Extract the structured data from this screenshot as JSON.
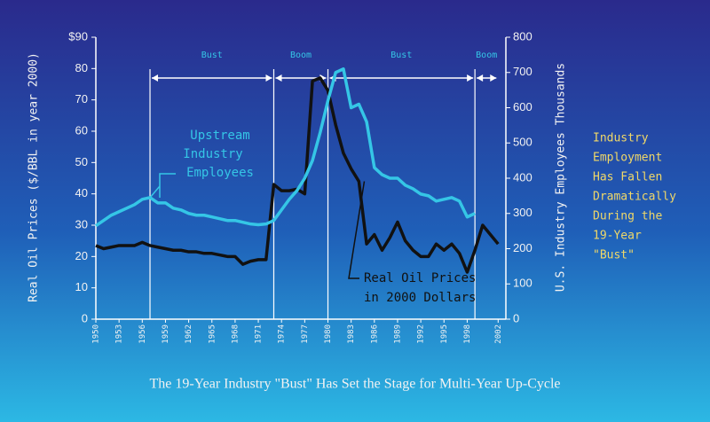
{
  "chart_data": {
    "type": "line",
    "title": "The 19-Year Industry \"Bust\" Has Set the Stage for Multi-Year Up-Cycle",
    "y_label": "Real Oil Prices ($/BBL in year 2000)",
    "y2_label": "U.S. Industry Employees Thousands",
    "xlim": [
      1950,
      2003
    ],
    "xticks": [
      1950,
      1953,
      1956,
      1959,
      1962,
      1965,
      1968,
      1971,
      1974,
      1977,
      1980,
      1983,
      1986,
      1989,
      1992,
      1995,
      1998,
      2002
    ],
    "ylim": [
      0,
      90
    ],
    "yticks": [
      0,
      10,
      20,
      30,
      40,
      50,
      60,
      70,
      80,
      {
        "value": 90,
        "label": "$90"
      }
    ],
    "y2lim": [
      0,
      800
    ],
    "y2ticks": [
      0,
      100,
      200,
      300,
      400,
      500,
      600,
      700,
      800
    ],
    "periods": [
      {
        "label": "Bust",
        "start": 1957,
        "end": 1973
      },
      {
        "label": "Boom",
        "start": 1973,
        "end": 1980
      },
      {
        "label": "Bust",
        "start": 1980,
        "end": 1999
      },
      {
        "label": "Boom",
        "start": 1999,
        "end": 2002
      }
    ],
    "series": [
      {
        "name": "Real Oil Prices in 2000 Dollars",
        "name_lines": [
          "Real Oil Prices",
          "in 2000 Dollars"
        ],
        "color": "#111111",
        "axis": "y",
        "x": [
          1950,
          1951,
          1952,
          1953,
          1954,
          1955,
          1956,
          1957,
          1958,
          1959,
          1960,
          1961,
          1962,
          1963,
          1964,
          1965,
          1966,
          1967,
          1968,
          1969,
          1970,
          1971,
          1972,
          1973,
          1974,
          1975,
          1976,
          1977,
          1978,
          1979,
          1980,
          1981,
          1982,
          1983,
          1984,
          1985,
          1986,
          1987,
          1988,
          1989,
          1990,
          1991,
          1992,
          1993,
          1994,
          1995,
          1996,
          1997,
          1998,
          1999,
          2000,
          2001,
          2002
        ],
        "values": [
          23.5,
          22.5,
          23,
          23.5,
          23.5,
          23.5,
          24.5,
          23.5,
          23,
          22.5,
          22,
          22,
          21.5,
          21.5,
          21,
          21,
          20.5,
          20,
          20,
          17.5,
          18.5,
          19,
          19,
          43,
          41,
          41,
          41.5,
          40,
          76,
          77,
          73,
          62,
          53,
          48,
          44,
          24,
          27,
          22,
          26,
          31,
          25,
          22,
          20,
          20,
          24,
          22,
          24,
          21,
          15,
          22,
          30,
          27,
          24
        ]
      },
      {
        "name": "Upstream Industry Employees",
        "name_lines": [
          "Upstream",
          "Industry",
          "Employees"
        ],
        "color": "#35c6e6",
        "axis": "y2",
        "x": [
          1950,
          1951,
          1952,
          1953,
          1954,
          1955,
          1956,
          1957,
          1958,
          1959,
          1960,
          1961,
          1962,
          1963,
          1964,
          1965,
          1966,
          1967,
          1968,
          1969,
          1970,
          1971,
          1972,
          1973,
          1974,
          1975,
          1976,
          1977,
          1978,
          1979,
          1980,
          1981,
          1982,
          1983,
          1984,
          1985,
          1986,
          1987,
          1988,
          1989,
          1990,
          1991,
          1992,
          1993,
          1994,
          1995,
          1996,
          1997,
          1998,
          1999
        ],
        "values": [
          265,
          280,
          295,
          305,
          315,
          325,
          340,
          345,
          330,
          330,
          315,
          310,
          300,
          295,
          295,
          290,
          285,
          280,
          280,
          275,
          270,
          268,
          270,
          280,
          310,
          340,
          365,
          400,
          450,
          530,
          620,
          700,
          710,
          600,
          610,
          560,
          430,
          410,
          400,
          400,
          380,
          370,
          355,
          350,
          335,
          340,
          345,
          335,
          290,
          300
        ]
      }
    ],
    "side_note": [
      "Industry",
      "Employment",
      "Has Fallen",
      "Dramatically",
      "During the",
      "19-Year",
      "\"Bust\""
    ]
  }
}
